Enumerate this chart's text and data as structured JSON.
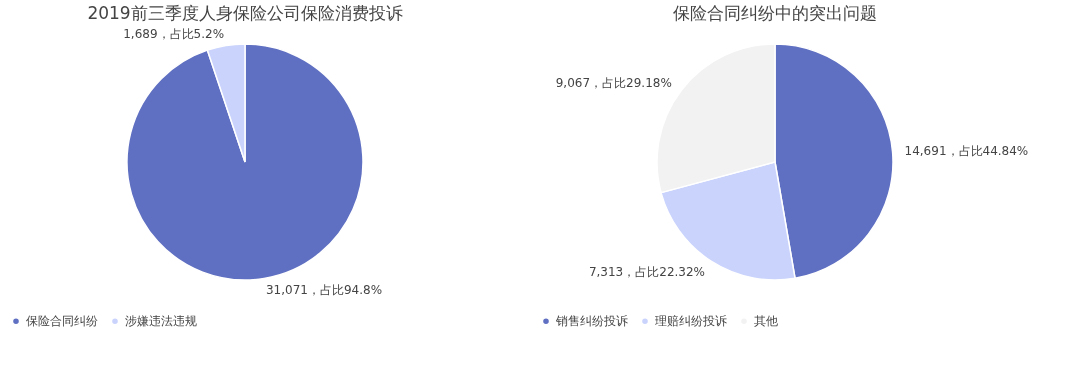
{
  "chart_data": [
    {
      "type": "pie",
      "title": "2019前三季度人身保险公司保险消费投诉",
      "categories": [
        "保险合同纠纷",
        "涉嫌违法违规"
      ],
      "values": [
        31071,
        1689
      ],
      "colors": [
        "#5f6fc1",
        "#c9d3fc"
      ],
      "value_labels": [
        "31,071，占比94.8%",
        "1,689，占比5.2%"
      ],
      "legend": "bottom"
    },
    {
      "type": "pie",
      "title": "保险合同纠纷中的突出问题",
      "categories": [
        "销售纠纷投诉",
        "理赔纠纷投诉",
        "其他"
      ],
      "values": [
        14691,
        7313,
        9067
      ],
      "colors": [
        "#5f6fc1",
        "#c9d3fc",
        "#f2f2f2"
      ],
      "value_labels": [
        "14,691，占比44.84%",
        "7,313，占比22.32%",
        "9,067，占比29.18%"
      ],
      "legend": "bottom"
    }
  ]
}
